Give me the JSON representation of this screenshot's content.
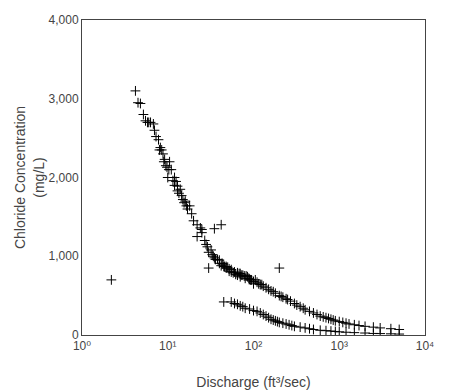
{
  "chart_data": {
    "type": "scatter",
    "xlabel": "Discharge (ft³/sec)",
    "ylabel": "Chloride Concentration\n(mg/L)",
    "x": [
      2.2,
      4.2,
      4.5,
      4.8,
      5.2,
      5.5,
      5.8,
      6.0,
      6.3,
      6.8,
      7.0,
      7.3,
      7.8,
      8.0,
      8.2,
      8.5,
      8.8,
      9.0,
      9.2,
      9.5,
      9.8,
      10.0,
      10.3,
      10.5,
      11.0,
      11.5,
      12.0,
      12.0,
      12.5,
      13.0,
      13.0,
      13.5,
      14.0,
      14.5,
      15.0,
      15.5,
      16.0,
      16.5,
      17.0,
      18.0,
      19.0,
      20.0,
      22.0,
      24.0,
      25.0,
      22.0,
      25.0,
      27.0,
      28.0,
      29.0,
      30.0,
      32.0,
      33.0,
      34.0,
      35.0,
      36.0,
      38.0,
      40.0,
      40.0,
      42.0,
      43.0,
      44.0,
      45.0,
      46.0,
      48.0,
      48.0,
      50.0,
      52.0,
      52.0,
      55.0,
      55.0,
      58.0,
      60.0,
      62.0,
      65.0,
      65.0,
      68.0,
      70.0,
      70.0,
      72.0,
      75.0,
      78.0,
      80.0,
      82.0,
      85.0,
      88.0,
      90.0,
      92.0,
      95.0,
      100.0,
      100.0,
      105.0,
      110.0,
      115.0,
      120.0,
      125.0,
      130.0,
      140.0,
      150.0,
      160.0,
      170.0,
      180.0,
      200.0,
      210.0,
      220.0,
      240.0,
      250.0,
      270.0,
      300.0,
      320.0,
      350.0,
      380.0,
      400.0,
      450.0,
      500.0,
      550.0,
      600.0,
      650.0,
      700.0,
      750.0,
      800.0,
      850.0,
      900.0,
      1000.0,
      1100.0,
      1200.0,
      1300.0,
      1500.0,
      1700.0,
      2000.0,
      2500.0,
      3000.0,
      4000.0,
      5000.0,
      200.0,
      35.0,
      42.0,
      30.0,
      45.0,
      55.0,
      60.0,
      65.0,
      70.0,
      75.0,
      80.0,
      90.0,
      100.0,
      110.0,
      120.0,
      130.0,
      140.0,
      150.0,
      160.0,
      170.0,
      180.0,
      190.0,
      200.0,
      220.0,
      240.0,
      260.0,
      280.0,
      300.0,
      350.0,
      400.0,
      450.0,
      500.0,
      600.0,
      700.0,
      800.0,
      900.0,
      1000.0,
      1200.0,
      1500.0,
      2000.0,
      2500.0,
      3000.0,
      4000.0,
      5000.0
    ],
    "values": [
      700,
      3100,
      2950,
      2940,
      2800,
      2720,
      2700,
      2700,
      2700,
      2680,
      2600,
      2520,
      2480,
      2350,
      2380,
      2350,
      2300,
      2200,
      2230,
      2150,
      2130,
      2000,
      2100,
      2200,
      2100,
      1960,
      2000,
      1900,
      1950,
      1890,
      1830,
      1800,
      1850,
      1770,
      1720,
      1680,
      1700,
      1640,
      1600,
      1640,
      1540,
      1450,
      1400,
      1360,
      1340,
      1250,
      1300,
      1200,
      1150,
      1120,
      1050,
      1080,
      1020,
      1000,
      980,
      960,
      960,
      950,
      910,
      880,
      910,
      900,
      870,
      870,
      850,
      870,
      860,
      840,
      810,
      800,
      830,
      790,
      800,
      770,
      790,
      760,
      780,
      780,
      740,
      760,
      760,
      750,
      720,
      750,
      740,
      720,
      710,
      700,
      700,
      680,
      650,
      700,
      670,
      650,
      640,
      640,
      620,
      600,
      580,
      560,
      550,
      530,
      500,
      490,
      480,
      460,
      450,
      430,
      400,
      380,
      360,
      340,
      320,
      300,
      280,
      260,
      240,
      230,
      220,
      210,
      200,
      190,
      180,
      170,
      160,
      150,
      140,
      130,
      120,
      110,
      100,
      90,
      80,
      70,
      850,
      1350,
      1400,
      850,
      420,
      420,
      400,
      390,
      370,
      360,
      340,
      330,
      310,
      300,
      280,
      260,
      240,
      220,
      200,
      190,
      180,
      170,
      160,
      150,
      140,
      130,
      120,
      110,
      100,
      90,
      80,
      70,
      60,
      55,
      50,
      45,
      40,
      35,
      30,
      25,
      20,
      18,
      15,
      12
    ],
    "log": "x",
    "xlim": [
      1,
      10000
    ],
    "xticks": [
      {
        "value": 1,
        "label": "10⁰"
      },
      {
        "value": 10,
        "label": "10¹"
      },
      {
        "value": 100,
        "label": "10²"
      },
      {
        "value": 1000,
        "label": "10³"
      },
      {
        "value": 10000,
        "label": "10⁴"
      }
    ],
    "ylim": [
      0,
      4000
    ],
    "yticks": [
      0,
      {
        "value": 1000,
        "label": "1,000"
      },
      {
        "value": 2000,
        "label": "2,000"
      },
      {
        "value": 3000,
        "label": "3,000"
      },
      {
        "value": 4000,
        "label": "4,000"
      }
    ],
    "marker": "+",
    "color": "black",
    "grid": false
  }
}
